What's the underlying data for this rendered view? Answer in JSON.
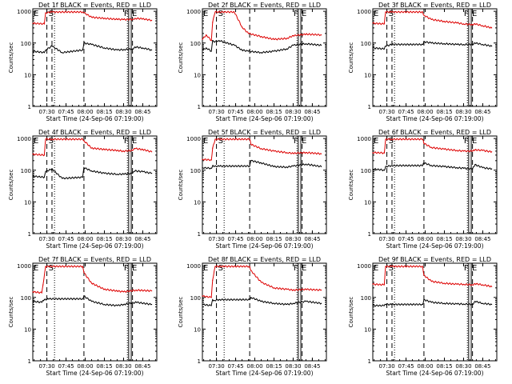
{
  "title_template": "Det {n}f BLACK = Events, RED = LLD",
  "xlabel": "Start Time (24-Sep-06 07:19:00)",
  "ylabel": "Counts/sec",
  "x_ticks": [
    "07:30",
    "07:45",
    "08:00",
    "08:15",
    "08:30",
    "08:45"
  ],
  "y_ticks": [
    "1",
    "10",
    "100",
    "1000"
  ],
  "markers": {
    "e": "E",
    "s": "S",
    "f": "F",
    "e2": "E"
  },
  "colors": {
    "events": "#000000",
    "lld": "#dd0000",
    "axes": "#000000"
  },
  "chart_data": [
    {
      "type": "line",
      "detector": "1",
      "title": "Det 1f BLACK = Events, RED = LLD",
      "xlabel": "Start Time (24-Sep-06 07:19:00)",
      "ylabel": "Counts/sec",
      "xlim": [
        "07:19",
        "08:56"
      ],
      "ylim": [
        1,
        1200
      ],
      "yscale": "log",
      "series": [
        {
          "name": "Events",
          "color": "#000000",
          "x": [
            "07:19",
            "07:28",
            "07:29",
            "07:34",
            "07:42",
            "07:58",
            "07:59",
            "08:05",
            "08:15",
            "08:25",
            "08:30",
            "08:37",
            "08:39",
            "08:45",
            "08:52"
          ],
          "y": [
            55,
            50,
            60,
            80,
            50,
            60,
            100,
            90,
            70,
            60,
            62,
            65,
            75,
            70,
            60
          ]
        },
        {
          "name": "LLD",
          "color": "#dd0000",
          "x": [
            "07:19",
            "07:28",
            "07:29",
            "07:34",
            "07:58",
            "07:59",
            "08:05",
            "08:15",
            "08:25",
            "08:30",
            "08:37",
            "08:39",
            "08:45",
            "08:52"
          ],
          "y": [
            420,
            400,
            900,
            950,
            950,
            900,
            650,
            600,
            560,
            550,
            560,
            600,
            580,
            520
          ]
        }
      ],
      "vlines": {
        "dashed": [
          "07:30",
          "07:34",
          "07:59",
          "08:37"
        ],
        "dotted": [
          "07:36",
          "08:33"
        ],
        "solid": [
          "08:34",
          "08:36"
        ]
      }
    },
    {
      "type": "line",
      "detector": "2",
      "title": "Det 2f BLACK = Events, RED = LLD",
      "xlabel": "Start Time (24-Sep-06 07:19:00)",
      "ylabel": "Counts/sec",
      "xlim": [
        "07:19",
        "08:56"
      ],
      "ylim": [
        1,
        1200
      ],
      "yscale": "log",
      "series": [
        {
          "name": "Events",
          "color": "#000000",
          "x": [
            "07:19",
            "07:22",
            "07:26",
            "07:27",
            "07:28",
            "07:32",
            "07:44",
            "07:50",
            "07:55",
            "08:05",
            "08:15",
            "08:25",
            "08:30",
            "08:40",
            "08:52"
          ],
          "y": [
            60,
            70,
            55,
            120,
            110,
            120,
            85,
            60,
            55,
            50,
            55,
            65,
            85,
            95,
            85
          ]
        },
        {
          "name": "LLD",
          "color": "#dd0000",
          "x": [
            "07:19",
            "07:22",
            "07:26",
            "07:27",
            "07:29",
            "07:44",
            "07:50",
            "07:55",
            "08:05",
            "08:15",
            "08:25",
            "08:30",
            "08:40",
            "08:52"
          ],
          "y": [
            130,
            180,
            120,
            450,
            950,
            950,
            320,
            200,
            160,
            130,
            140,
            170,
            190,
            180
          ]
        }
      ],
      "vlines": {
        "dashed": [
          "07:30",
          "07:56",
          "08:37"
        ],
        "dotted": [
          "07:36",
          "08:33"
        ],
        "solid": [
          "08:34",
          "08:36"
        ]
      }
    },
    {
      "type": "line",
      "detector": "3",
      "title": "Det 3f BLACK = Events, RED = LLD",
      "xlabel": "Start Time (24-Sep-06 07:19:00)",
      "ylabel": "Counts/sec",
      "xlim": [
        "07:19",
        "08:56"
      ],
      "ylim": [
        1,
        1200
      ],
      "yscale": "log",
      "series": [
        {
          "name": "Events",
          "color": "#000000",
          "x": [
            "07:19",
            "07:28",
            "07:29",
            "07:34",
            "07:58",
            "07:59",
            "08:05",
            "08:15",
            "08:25",
            "08:30",
            "08:37",
            "08:39",
            "08:45",
            "08:52"
          ],
          "y": [
            70,
            65,
            80,
            90,
            90,
            110,
            100,
            95,
            90,
            90,
            90,
            100,
            90,
            80
          ]
        },
        {
          "name": "LLD",
          "color": "#dd0000",
          "x": [
            "07:19",
            "07:28",
            "07:29",
            "07:34",
            "07:58",
            "07:59",
            "08:05",
            "08:15",
            "08:25",
            "08:30",
            "08:37",
            "08:39",
            "08:45",
            "08:52"
          ],
          "y": [
            420,
            400,
            950,
            950,
            950,
            750,
            550,
            480,
            430,
            400,
            380,
            400,
            350,
            300
          ]
        }
      ],
      "vlines": {
        "dashed": [
          "07:30",
          "07:34",
          "07:59",
          "08:37"
        ],
        "dotted": [
          "07:36",
          "08:33"
        ],
        "solid": [
          "08:34",
          "08:36"
        ]
      }
    },
    {
      "type": "line",
      "detector": "4",
      "title": "Det 4f BLACK = Events, RED = LLD",
      "xlabel": "Start Time (24-Sep-06 07:19:00)",
      "ylabel": "Counts/sec",
      "xlim": [
        "07:19",
        "08:56"
      ],
      "ylim": [
        1,
        1200
      ],
      "yscale": "log",
      "series": [
        {
          "name": "Events",
          "color": "#000000",
          "x": [
            "07:19",
            "07:28",
            "07:29",
            "07:34",
            "07:42",
            "07:58",
            "07:59",
            "08:05",
            "08:15",
            "08:25",
            "08:30",
            "08:37",
            "08:39",
            "08:45",
            "08:52"
          ],
          "y": [
            65,
            60,
            90,
            110,
            55,
            60,
            120,
            95,
            80,
            75,
            75,
            80,
            95,
            90,
            80
          ]
        },
        {
          "name": "LLD",
          "color": "#dd0000",
          "x": [
            "07:19",
            "07:28",
            "07:29",
            "07:34",
            "07:58",
            "07:59",
            "08:05",
            "08:15",
            "08:25",
            "08:30",
            "08:37",
            "08:39",
            "08:45",
            "08:52"
          ],
          "y": [
            320,
            300,
            950,
            950,
            950,
            850,
            500,
            450,
            420,
            400,
            420,
            480,
            450,
            380
          ]
        }
      ],
      "vlines": {
        "dashed": [
          "07:30",
          "07:34",
          "07:59",
          "08:37"
        ],
        "dotted": [
          "07:36",
          "08:33"
        ],
        "solid": [
          "08:34",
          "08:36"
        ]
      }
    },
    {
      "type": "line",
      "detector": "5",
      "title": "Det 5f BLACK = Events, RED = LLD",
      "xlabel": "Start Time (24-Sep-06 07:19:00)",
      "ylabel": "Counts/sec",
      "xlim": [
        "07:19",
        "08:56"
      ],
      "ylim": [
        1,
        1200
      ],
      "yscale": "log",
      "series": [
        {
          "name": "Events",
          "color": "#000000",
          "x": [
            "07:19",
            "07:26",
            "07:27",
            "07:28",
            "07:32",
            "07:56",
            "07:57",
            "08:05",
            "08:15",
            "08:25",
            "08:30",
            "08:40",
            "08:52"
          ],
          "y": [
            120,
            115,
            140,
            130,
            135,
            135,
            200,
            170,
            130,
            125,
            135,
            155,
            130
          ]
        },
        {
          "name": "LLD",
          "color": "#dd0000",
          "x": [
            "07:19",
            "07:26",
            "07:27",
            "07:29",
            "07:56",
            "07:57",
            "08:05",
            "08:15",
            "08:25",
            "08:30",
            "08:40",
            "08:52"
          ],
          "y": [
            220,
            210,
            500,
            950,
            950,
            650,
            480,
            400,
            360,
            340,
            360,
            330
          ]
        }
      ],
      "vlines": {
        "dashed": [
          "07:30",
          "07:56",
          "08:37"
        ],
        "dotted": [
          "07:36",
          "08:33"
        ],
        "solid": [
          "08:34",
          "08:36"
        ]
      }
    },
    {
      "type": "line",
      "detector": "6",
      "title": "Det 6f BLACK = Events, RED = LLD",
      "xlabel": "Start Time (24-Sep-06 07:19:00)",
      "ylabel": "Counts/sec",
      "xlim": [
        "07:19",
        "08:56"
      ],
      "ylim": [
        1,
        1200
      ],
      "yscale": "log",
      "series": [
        {
          "name": "Events",
          "color": "#000000",
          "x": [
            "07:19",
            "07:28",
            "07:29",
            "07:34",
            "07:58",
            "07:59",
            "08:05",
            "08:15",
            "08:25",
            "08:30",
            "08:37",
            "08:39",
            "08:45",
            "08:52"
          ],
          "y": [
            110,
            100,
            130,
            140,
            140,
            170,
            140,
            130,
            120,
            115,
            110,
            150,
            120,
            110
          ]
        },
        {
          "name": "LLD",
          "color": "#dd0000",
          "x": [
            "07:19",
            "07:28",
            "07:29",
            "07:34",
            "07:58",
            "07:59",
            "08:05",
            "08:15",
            "08:25",
            "08:30",
            "08:37",
            "08:39",
            "08:45",
            "08:52"
          ],
          "y": [
            360,
            350,
            950,
            950,
            950,
            700,
            520,
            460,
            420,
            400,
            400,
            440,
            420,
            380
          ]
        }
      ],
      "vlines": {
        "dashed": [
          "07:30",
          "07:34",
          "07:59",
          "08:37"
        ],
        "dotted": [
          "07:36",
          "08:33"
        ],
        "solid": [
          "08:34",
          "08:36"
        ]
      }
    },
    {
      "type": "line",
      "detector": "7",
      "title": "Det 7f BLACK = Events, RED = LLD",
      "xlabel": "Start Time (24-Sep-06 07:19:00)",
      "ylabel": "Counts/sec",
      "xlim": [
        "07:19",
        "08:56"
      ],
      "ylim": [
        1,
        1200
      ],
      "yscale": "log",
      "series": [
        {
          "name": "Events",
          "color": "#000000",
          "x": [
            "07:19",
            "07:26",
            "07:27",
            "07:28",
            "07:32",
            "07:58",
            "07:59",
            "08:05",
            "08:15",
            "08:25",
            "08:30",
            "08:40",
            "08:52"
          ],
          "y": [
            75,
            70,
            80,
            85,
            90,
            90,
            110,
            75,
            60,
            55,
            60,
            70,
            60
          ]
        },
        {
          "name": "LLD",
          "color": "#dd0000",
          "x": [
            "07:19",
            "07:26",
            "07:27",
            "07:29",
            "07:58",
            "07:59",
            "08:05",
            "08:15",
            "08:25",
            "08:30",
            "08:40",
            "08:52"
          ],
          "y": [
            150,
            140,
            250,
            950,
            950,
            600,
            280,
            180,
            160,
            150,
            170,
            160
          ]
        }
      ],
      "vlines": {
        "dashed": [
          "07:30",
          "07:59",
          "08:37"
        ],
        "dotted": [
          "07:36",
          "08:33"
        ],
        "solid": [
          "08:34",
          "08:36"
        ]
      }
    },
    {
      "type": "line",
      "detector": "8",
      "title": "Det 8f BLACK = Events, RED = LLD",
      "xlabel": "Start Time (24-Sep-06 07:19:00)",
      "ylabel": "Counts/sec",
      "xlim": [
        "07:19",
        "08:56"
      ],
      "ylim": [
        1,
        1200
      ],
      "yscale": "log",
      "series": [
        {
          "name": "Events",
          "color": "#000000",
          "x": [
            "07:19",
            "07:26",
            "07:27",
            "07:28",
            "07:32",
            "07:56",
            "07:57",
            "08:05",
            "08:15",
            "08:25",
            "08:30",
            "08:40",
            "08:52"
          ],
          "y": [
            60,
            55,
            85,
            80,
            85,
            85,
            100,
            75,
            65,
            60,
            65,
            75,
            65
          ]
        },
        {
          "name": "LLD",
          "color": "#dd0000",
          "x": [
            "07:19",
            "07:26",
            "07:27",
            "07:29",
            "07:56",
            "07:57",
            "08:05",
            "08:15",
            "08:25",
            "08:30",
            "08:40",
            "08:52"
          ],
          "y": [
            110,
            100,
            350,
            950,
            950,
            700,
            300,
            200,
            180,
            170,
            180,
            170
          ]
        }
      ],
      "vlines": {
        "dashed": [
          "07:30",
          "07:56",
          "08:37"
        ],
        "dotted": [
          "07:36",
          "08:33"
        ],
        "solid": [
          "08:34",
          "08:36"
        ]
      }
    },
    {
      "type": "line",
      "detector": "9",
      "title": "Det 9f BLACK = Events, RED = LLD",
      "xlabel": "Start Time (24-Sep-06 07:19:00)",
      "ylabel": "Counts/sec",
      "xlim": [
        "07:19",
        "08:56"
      ],
      "ylim": [
        1,
        1200
      ],
      "yscale": "log",
      "series": [
        {
          "name": "Events",
          "color": "#000000",
          "x": [
            "07:19",
            "07:28",
            "07:29",
            "07:34",
            "07:58",
            "07:59",
            "08:05",
            "08:15",
            "08:25",
            "08:30",
            "08:37",
            "08:39",
            "08:45",
            "08:52"
          ],
          "y": [
            55,
            55,
            60,
            60,
            60,
            85,
            70,
            65,
            62,
            62,
            60,
            75,
            65,
            60
          ]
        },
        {
          "name": "LLD",
          "color": "#dd0000",
          "x": [
            "07:19",
            "07:28",
            "07:29",
            "07:34",
            "07:58",
            "07:59",
            "08:05",
            "08:15",
            "08:25",
            "08:30",
            "08:37",
            "08:39",
            "08:45",
            "08:52"
          ],
          "y": [
            260,
            250,
            950,
            950,
            950,
            500,
            320,
            280,
            260,
            260,
            250,
            270,
            250,
            220
          ]
        }
      ],
      "vlines": {
        "dashed": [
          "07:30",
          "07:34",
          "07:59",
          "08:37"
        ],
        "dotted": [
          "07:36",
          "08:33"
        ],
        "solid": [
          "08:34",
          "08:36"
        ]
      }
    }
  ]
}
